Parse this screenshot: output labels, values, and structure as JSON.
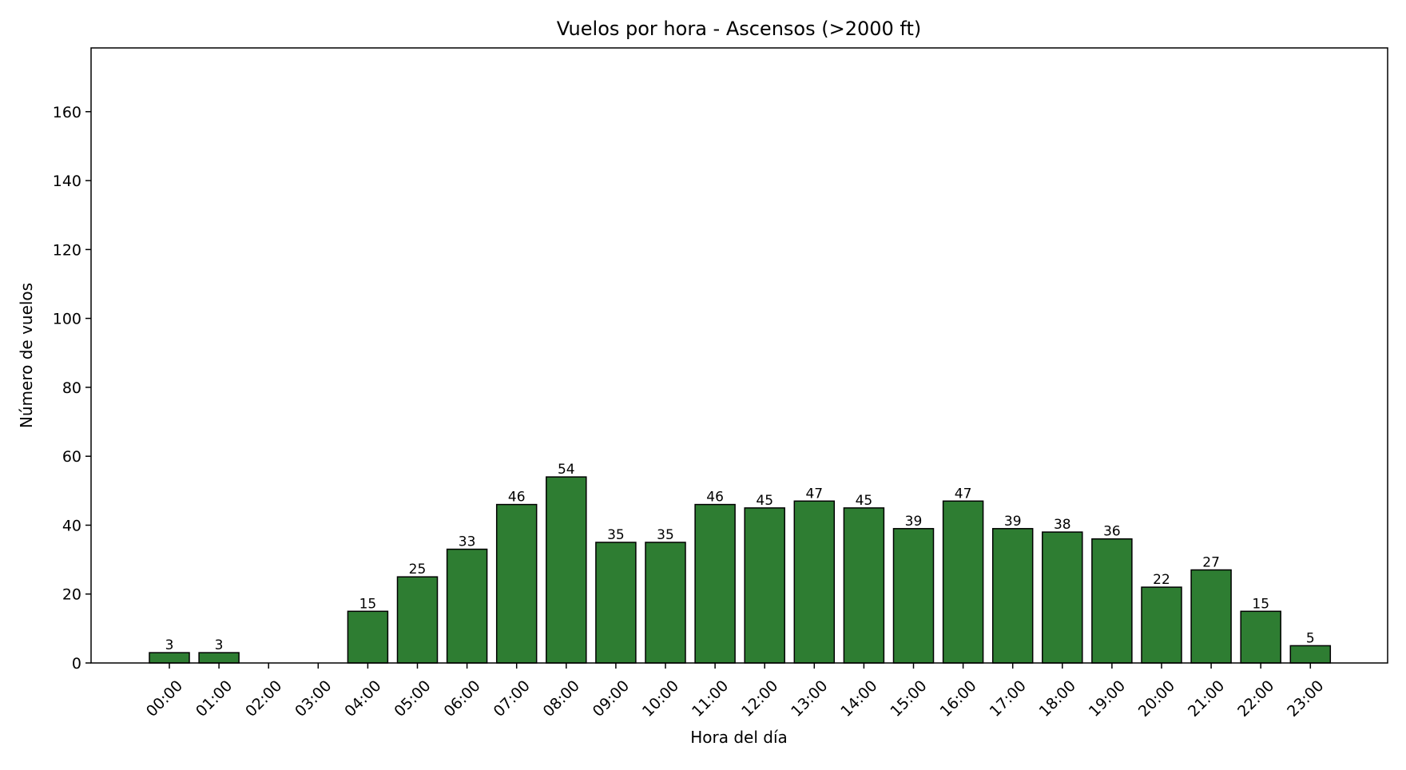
{
  "chart_data": {
    "type": "bar",
    "title": "Vuelos por hora - Ascensos (>2000 ft)",
    "xlabel": "Hora del día",
    "ylabel": "Número de vuelos",
    "categories": [
      "00:00",
      "01:00",
      "02:00",
      "03:00",
      "04:00",
      "05:00",
      "06:00",
      "07:00",
      "08:00",
      "09:00",
      "10:00",
      "11:00",
      "12:00",
      "13:00",
      "14:00",
      "15:00",
      "16:00",
      "17:00",
      "18:00",
      "19:00",
      "20:00",
      "21:00",
      "22:00",
      "23:00"
    ],
    "values": [
      3,
      3,
      0,
      0,
      15,
      25,
      33,
      46,
      54,
      35,
      35,
      46,
      45,
      47,
      45,
      39,
      47,
      39,
      38,
      36,
      22,
      27,
      15,
      5
    ],
    "data_labels": [
      "3",
      "3",
      "",
      "",
      "15",
      "25",
      "33",
      "46",
      "54",
      "35",
      "35",
      "46",
      "45",
      "47",
      "45",
      "39",
      "47",
      "39",
      "38",
      "36",
      "22",
      "27",
      "15",
      "5"
    ],
    "ylim": [
      0,
      178.5
    ],
    "yticks": [
      0,
      20,
      40,
      60,
      80,
      100,
      120,
      140,
      160
    ],
    "grid": false,
    "legend": "none",
    "colors": {
      "bar": "#2e7d32",
      "bar_edge": "#000000",
      "axis": "#000000"
    }
  }
}
